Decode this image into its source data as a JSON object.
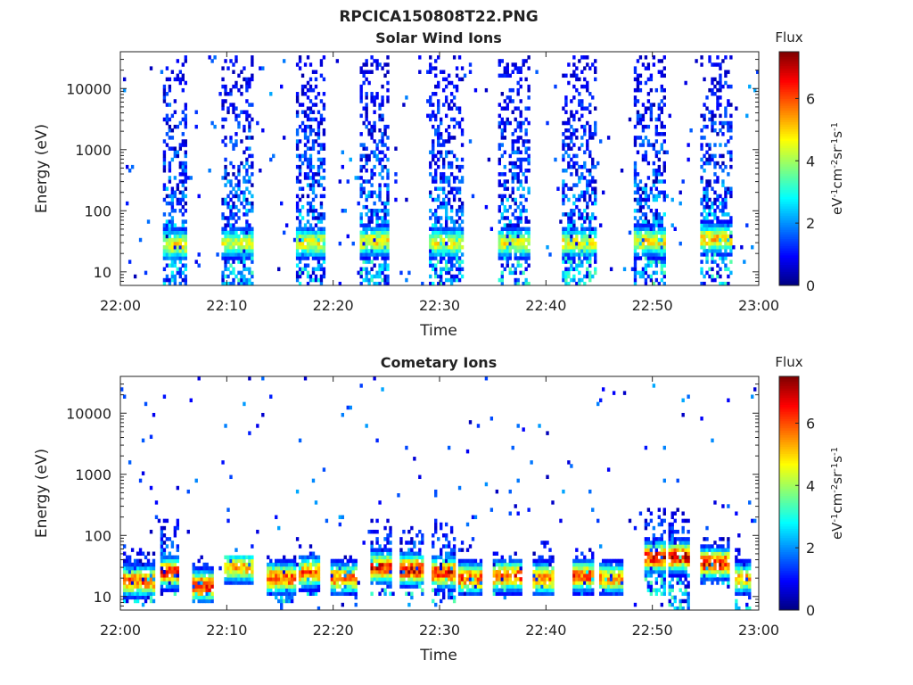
{
  "title": "RPCICA150808T22.PNG",
  "colormap": [
    "#00007f",
    "#0000ff",
    "#007fff",
    "#00ffff",
    "#7fff7f",
    "#ffff00",
    "#ff7f00",
    "#ff0000",
    "#7f0000"
  ],
  "chart_data": [
    {
      "type": "heatmap",
      "title": "Solar Wind Ions",
      "xlabel": "Time",
      "ylabel": "Energy (eV)",
      "x_ticks": [
        "22:00",
        "22:10",
        "22:20",
        "22:30",
        "22:40",
        "22:50",
        "23:00"
      ],
      "x_range_minutes": [
        0,
        60
      ],
      "y_scale": "log",
      "y_ticks": [
        {
          "value": 10,
          "label": "10"
        },
        {
          "value": 100,
          "label": "100"
        },
        {
          "value": 1000,
          "label": "1000"
        },
        {
          "value": 10000,
          "label": "10000"
        }
      ],
      "y_range": [
        6,
        40000
      ],
      "colorbar": {
        "title": "Flux",
        "label": "eV-1cm-2sr-1s-1",
        "range": [
          0,
          7.5
        ],
        "ticks": [
          {
            "value": 0,
            "label": "0"
          },
          {
            "value": 2,
            "label": "2"
          },
          {
            "value": 4,
            "label": "4"
          },
          {
            "value": 6,
            "label": "6"
          }
        ]
      },
      "bursts": [
        {
          "t0": 3.9,
          "t1": 6.2,
          "e_low": 6,
          "e_high": 35000,
          "peak_energy": 28,
          "peak_flux": 5.0
        },
        {
          "t0": 9.4,
          "t1": 12.5,
          "e_low": 6,
          "e_high": 35000,
          "peak_energy": 30,
          "peak_flux": 4.6
        },
        {
          "t0": 16.5,
          "t1": 19.3,
          "e_low": 6,
          "e_high": 35000,
          "peak_energy": 30,
          "peak_flux": 4.9
        },
        {
          "t0": 22.4,
          "t1": 25.3,
          "e_low": 6,
          "e_high": 35000,
          "peak_energy": 32,
          "peak_flux": 5.0
        },
        {
          "t0": 29.0,
          "t1": 32.2,
          "e_low": 6,
          "e_high": 35000,
          "peak_energy": 30,
          "peak_flux": 4.8
        },
        {
          "t0": 35.4,
          "t1": 38.6,
          "e_low": 6,
          "e_high": 35000,
          "peak_energy": 30,
          "peak_flux": 4.8
        },
        {
          "t0": 41.6,
          "t1": 44.7,
          "e_low": 6,
          "e_high": 35000,
          "peak_energy": 30,
          "peak_flux": 4.9
        },
        {
          "t0": 48.2,
          "t1": 51.3,
          "e_low": 6,
          "e_high": 35000,
          "peak_energy": 32,
          "peak_flux": 5.0
        },
        {
          "t0": 54.5,
          "t1": 57.5,
          "e_low": 6,
          "e_high": 35000,
          "peak_energy": 35,
          "peak_flux": 5.3
        }
      ]
    },
    {
      "type": "heatmap",
      "title": "Cometary Ions",
      "xlabel": "Time",
      "ylabel": "Energy (eV)",
      "x_ticks": [
        "22:00",
        "22:10",
        "22:20",
        "22:30",
        "22:40",
        "22:50",
        "23:00"
      ],
      "x_range_minutes": [
        0,
        60
      ],
      "y_scale": "log",
      "y_ticks": [
        {
          "value": 10,
          "label": "10"
        },
        {
          "value": 100,
          "label": "100"
        },
        {
          "value": 1000,
          "label": "1000"
        },
        {
          "value": 10000,
          "label": "10000"
        }
      ],
      "y_range": [
        6,
        40000
      ],
      "colorbar": {
        "title": "Flux",
        "label": "eV-1cm-2sr-1s-1",
        "range": [
          0,
          7.5
        ],
        "ticks": [
          {
            "value": 0,
            "label": "0"
          },
          {
            "value": 2,
            "label": "2"
          },
          {
            "value": 4,
            "label": "4"
          },
          {
            "value": 6,
            "label": "6"
          }
        ]
      },
      "bursts": [
        {
          "t0": 0.2,
          "t1": 3.3,
          "e_low": 8,
          "e_high": 60,
          "peak_energy": 18,
          "peak_flux": 6.2
        },
        {
          "t0": 3.7,
          "t1": 5.6,
          "e_low": 10,
          "e_high": 200,
          "peak_energy": 25,
          "peak_flux": 6.6
        },
        {
          "t0": 6.8,
          "t1": 8.8,
          "e_low": 8,
          "e_high": 50,
          "peak_energy": 15,
          "peak_flux": 6.9
        },
        {
          "t0": 9.8,
          "t1": 12.5,
          "e_low": 15,
          "e_high": 45,
          "peak_energy": 30,
          "peak_flux": 5.5
        },
        {
          "t0": 13.8,
          "t1": 16.5,
          "e_low": 8,
          "e_high": 50,
          "peak_energy": 20,
          "peak_flux": 6.3
        },
        {
          "t0": 16.8,
          "t1": 18.8,
          "e_low": 10,
          "e_high": 70,
          "peak_energy": 25,
          "peak_flux": 6.1
        },
        {
          "t0": 19.8,
          "t1": 22.2,
          "e_low": 10,
          "e_high": 45,
          "peak_energy": 20,
          "peak_flux": 6.0
        },
        {
          "t0": 23.4,
          "t1": 25.6,
          "e_low": 10,
          "e_high": 200,
          "peak_energy": 30,
          "peak_flux": 6.8
        },
        {
          "t0": 26.3,
          "t1": 28.6,
          "e_low": 10,
          "e_high": 150,
          "peak_energy": 28,
          "peak_flux": 7.0
        },
        {
          "t0": 29.2,
          "t1": 31.4,
          "e_low": 8,
          "e_high": 200,
          "peak_energy": 25,
          "peak_flux": 6.8
        },
        {
          "t0": 31.7,
          "t1": 34.0,
          "e_low": 10,
          "e_high": 80,
          "peak_energy": 20,
          "peak_flux": 6.2
        },
        {
          "t0": 35.0,
          "t1": 37.8,
          "e_low": 10,
          "e_high": 60,
          "peak_energy": 22,
          "peak_flux": 6.3
        },
        {
          "t0": 38.8,
          "t1": 40.8,
          "e_low": 10,
          "e_high": 80,
          "peak_energy": 20,
          "peak_flux": 6.0
        },
        {
          "t0": 42.5,
          "t1": 44.4,
          "e_low": 10,
          "e_high": 60,
          "peak_energy": 22,
          "peak_flux": 6.3
        },
        {
          "t0": 45.0,
          "t1": 47.3,
          "e_low": 10,
          "e_high": 40,
          "peak_energy": 20,
          "peak_flux": 5.6
        },
        {
          "t0": 49.3,
          "t1": 51.2,
          "e_low": 10,
          "e_high": 300,
          "peak_energy": 45,
          "peak_flux": 6.9
        },
        {
          "t0": 51.6,
          "t1": 53.4,
          "e_low": 6,
          "e_high": 300,
          "peak_energy": 45,
          "peak_flux": 7.1
        },
        {
          "t0": 54.5,
          "t1": 57.3,
          "e_low": 15,
          "e_high": 100,
          "peak_energy": 35,
          "peak_flux": 6.8
        },
        {
          "t0": 57.8,
          "t1": 59.3,
          "e_low": 6,
          "e_high": 60,
          "peak_energy": 20,
          "peak_flux": 5.5
        }
      ]
    }
  ]
}
